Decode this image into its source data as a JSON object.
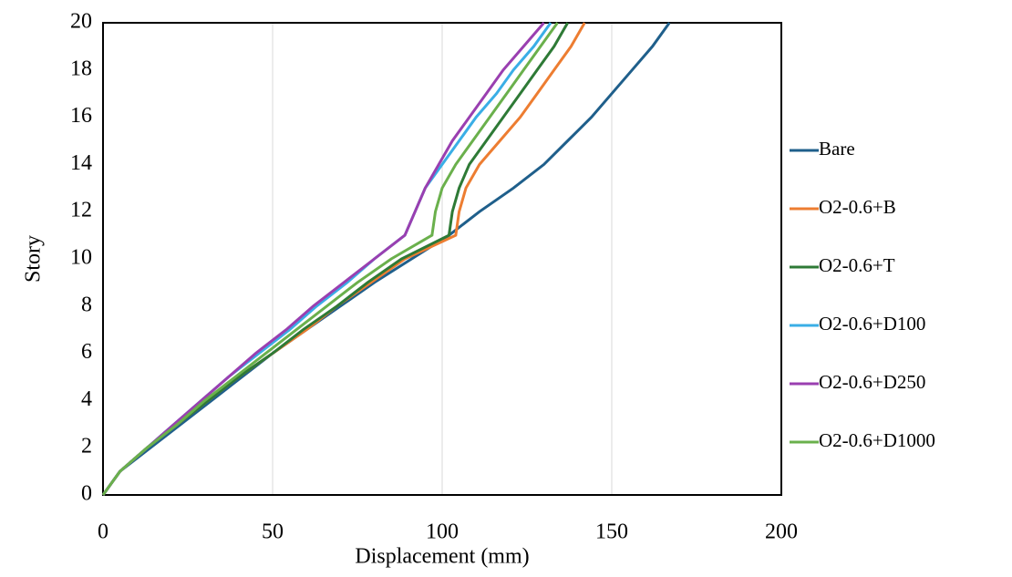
{
  "chart_data": {
    "type": "line",
    "xlabel": "Displacement (mm)",
    "ylabel": "Story",
    "xlim": [
      0,
      200
    ],
    "xticks": [
      0,
      50,
      100,
      150,
      200
    ],
    "ylim": [
      0,
      20
    ],
    "yticks": [
      0,
      2,
      4,
      6,
      8,
      10,
      12,
      14,
      16,
      18,
      20
    ],
    "grid": "x",
    "legend": "right",
    "series": [
      {
        "name": "Bare",
        "color": "#1f5f8b",
        "x": [
          0,
          5,
          14,
          23,
          32,
          41,
          50,
          60,
          70,
          80,
          91,
          102,
          111,
          121,
          130,
          137,
          144,
          150,
          156,
          162,
          167
        ],
        "values": [
          0,
          1,
          2,
          3,
          4,
          5,
          6,
          7,
          8,
          9,
          10,
          11,
          12,
          13,
          14,
          15,
          16,
          17,
          18,
          19,
          20
        ]
      },
      {
        "name": "O2-0.6+B",
        "color": "#ed7d31",
        "x": [
          0,
          5,
          13,
          22,
          31,
          40,
          50,
          60,
          69,
          79,
          89,
          104,
          105,
          107,
          111,
          117,
          123,
          128,
          133,
          138,
          142
        ],
        "values": [
          0,
          1,
          2,
          3,
          4,
          5,
          6,
          7,
          8,
          9,
          10,
          11,
          12,
          13,
          14,
          15,
          16,
          17,
          18,
          19,
          20
        ]
      },
      {
        "name": "O2-0.6+T",
        "color": "#2e7a36",
        "x": [
          0,
          5,
          13,
          22,
          31,
          40,
          50,
          59,
          69,
          78,
          88,
          102,
          103,
          105,
          108,
          113,
          118,
          123,
          128,
          133,
          137
        ],
        "values": [
          0,
          1,
          2,
          3,
          4,
          5,
          6,
          7,
          8,
          9,
          10,
          11,
          12,
          13,
          14,
          15,
          16,
          17,
          18,
          19,
          20
        ]
      },
      {
        "name": "O2-0.6+D100",
        "color": "#3aaee6",
        "x": [
          0,
          5,
          13,
          21,
          29,
          37,
          46,
          55,
          63,
          72,
          80,
          89,
          92,
          95,
          100,
          105,
          110,
          116,
          121,
          127,
          132
        ],
        "values": [
          0,
          1,
          2,
          3,
          4,
          5,
          6,
          7,
          8,
          9,
          10,
          11,
          12,
          13,
          14,
          15,
          16,
          17,
          18,
          19,
          20
        ]
      },
      {
        "name": "O2-0.6+D250",
        "color": "#9a3fb0",
        "x": [
          0,
          5,
          13,
          21,
          29,
          37,
          45,
          54,
          62,
          71,
          80,
          89,
          92,
          95,
          99,
          103,
          108,
          113,
          118,
          124,
          130
        ],
        "values": [
          0,
          1,
          2,
          3,
          4,
          5,
          6,
          7,
          8,
          9,
          10,
          11,
          12,
          13,
          14,
          15,
          16,
          17,
          18,
          19,
          20
        ]
      },
      {
        "name": "O2-0.6+D1000",
        "color": "#6ab04c",
        "x": [
          0,
          5,
          13,
          22,
          30,
          39,
          48,
          57,
          66,
          75,
          85,
          97,
          98,
          100,
          104,
          109,
          114,
          119,
          124,
          129,
          134
        ],
        "values": [
          0,
          1,
          2,
          3,
          4,
          5,
          6,
          7,
          8,
          9,
          10,
          11,
          12,
          13,
          14,
          15,
          16,
          17,
          18,
          19,
          20
        ]
      }
    ]
  }
}
